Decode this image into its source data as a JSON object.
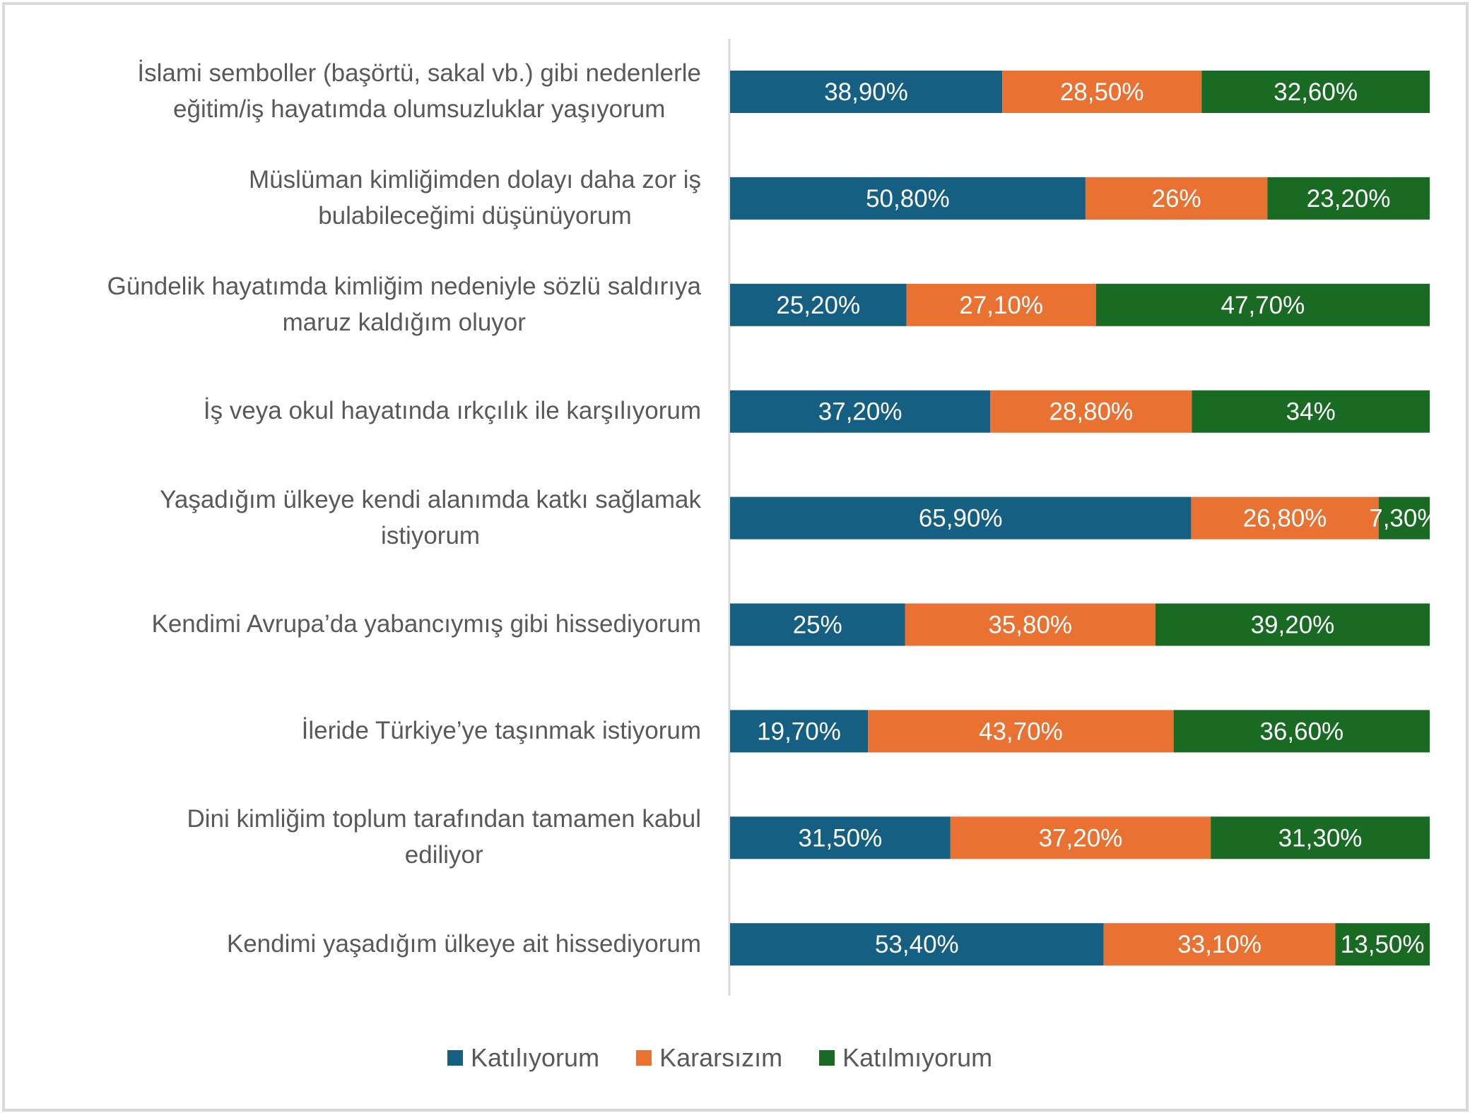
{
  "chart_data": {
    "type": "bar",
    "orientation": "horizontal",
    "stacked": "100%",
    "title": "",
    "xlabel": "",
    "ylabel": "",
    "xlim": [
      0,
      100
    ],
    "grid": false,
    "legend_position": "bottom",
    "categories": [
      [
        "İslami semboller (başörtü, sakal vb.) gibi nedenlerle",
        "eğitim/iş hayatımda olumsuzluklar yaşıyorum"
      ],
      [
        "Müslüman kimliğimden dolayı daha zor iş",
        "bulabileceğimi düşünüyorum"
      ],
      [
        "Gündelik hayatımda kimliğim nedeniyle sözlü saldırıya",
        "maruz kaldığım oluyor"
      ],
      [
        "İş veya okul hayatında ırkçılık ile karşılıyorum"
      ],
      [
        "Yaşadığım ülkeye kendi alanımda katkı sağlamak",
        "istiyorum"
      ],
      [
        "Kendimi Avrupa’da yabancıymış gibi hissediyorum"
      ],
      [
        "İleride Türkiye’ye taşınmak istiyorum"
      ],
      [
        "Dini kimliğim toplum tarafından tamamen kabul",
        "ediliyor"
      ],
      [
        "Kendimi yaşadığım ülkeye ait hissediyorum"
      ]
    ],
    "series": [
      {
        "name": "Katılıyorum",
        "color": "#156082",
        "values": [
          38.9,
          50.8,
          25.2,
          37.2,
          65.9,
          25,
          19.7,
          31.5,
          53.4
        ],
        "labels": [
          "38,90%",
          "50,80%",
          "25,20%",
          "37,20%",
          "65,90%",
          "25%",
          "19,70%",
          "31,50%",
          "53,40%"
        ]
      },
      {
        "name": "Kararsızım",
        "color": "#E97132",
        "values": [
          28.5,
          26,
          27.1,
          28.8,
          26.8,
          35.8,
          43.7,
          37.2,
          33.1
        ],
        "labels": [
          "28,50%",
          "26%",
          "27,10%",
          "28,80%",
          "26,80%",
          "35,80%",
          "43,70%",
          "37,20%",
          "33,10%"
        ]
      },
      {
        "name": "Katılmıyorum",
        "color": "#196B24",
        "values": [
          32.6,
          23.2,
          47.7,
          34,
          7.3,
          39.2,
          36.6,
          31.3,
          13.5
        ],
        "labels": [
          "32,60%",
          "23,20%",
          "47,70%",
          "34%",
          "7,30%",
          "39,20%",
          "36,60%",
          "31,30%",
          "13,50%"
        ]
      }
    ]
  },
  "colors": {
    "axis": "#d9d9d9",
    "text": "#595959",
    "label_text": "#ffffff"
  }
}
